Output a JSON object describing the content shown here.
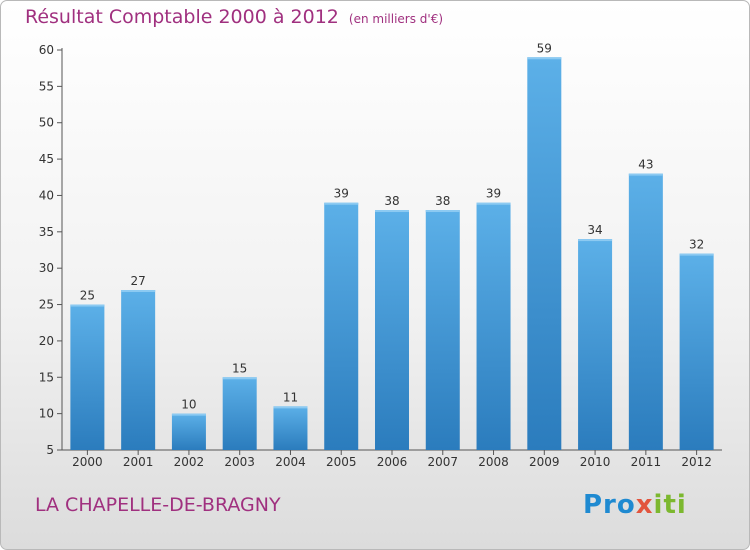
{
  "title": "Résultat Comptable 2000 à 2012",
  "subtitle": "(en milliers d'€)",
  "commune": "LA CHAPELLE-DE-BRAGNY",
  "logo": [
    "Pro",
    "x",
    "iti"
  ],
  "colors": {
    "title": "#a0307f",
    "bar_top": "#5cb0e8",
    "bar_bottom": "#2b7cbd"
  },
  "chart_data": {
    "type": "bar",
    "categories": [
      "2000",
      "2001",
      "2002",
      "2003",
      "2004",
      "2005",
      "2006",
      "2007",
      "2008",
      "2009",
      "2010",
      "2011",
      "2012"
    ],
    "values": [
      25,
      27,
      10,
      15,
      11,
      39,
      38,
      38,
      39,
      59,
      34,
      43,
      32
    ],
    "title": "Résultat Comptable 2000 à 2012",
    "subtitle": "(en milliers d'€)",
    "ylim": [
      5,
      60
    ],
    "yticks": [
      5,
      10,
      15,
      20,
      25,
      30,
      35,
      40,
      45,
      50,
      55,
      60
    ],
    "grid": false,
    "data_labels": true
  }
}
